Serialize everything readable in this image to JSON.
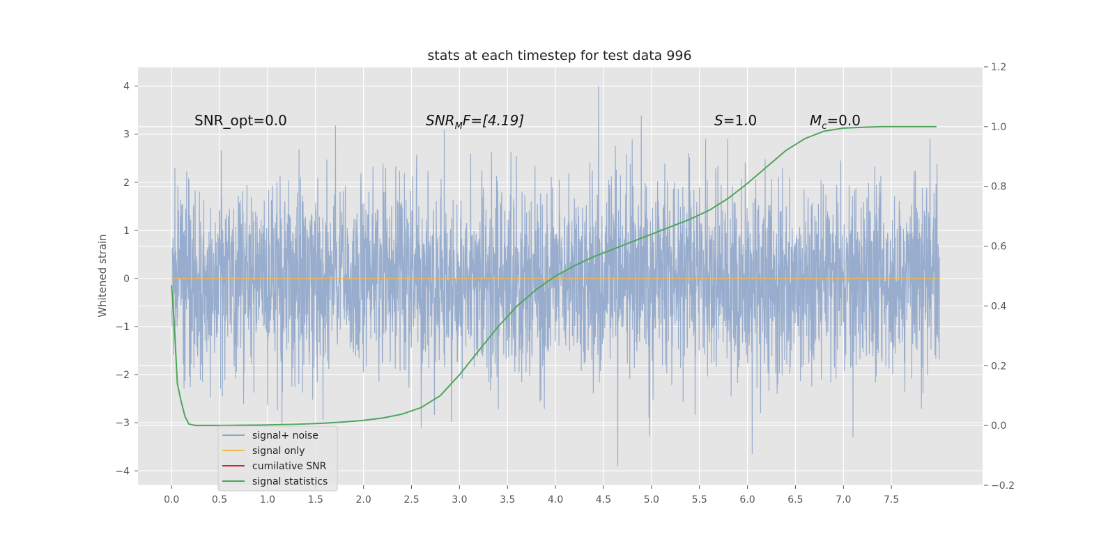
{
  "chart_data": {
    "type": "line",
    "title": "stats at each timestep for test data 996",
    "ylabel": "Whitened strain",
    "xlim": [
      -0.35,
      8.45
    ],
    "ylim": [
      -4.3,
      4.4
    ],
    "y2lim": [
      -0.2,
      1.2
    ],
    "x_ticks": [
      0.0,
      0.5,
      1.0,
      1.5,
      2.0,
      2.5,
      3.0,
      3.5,
      4.0,
      4.5,
      5.0,
      5.5,
      6.0,
      6.5,
      7.0,
      7.5
    ],
    "x_tick_labels": [
      "0.0",
      "0.5",
      "1.0",
      "1.5",
      "2.0",
      "2.5",
      "3.0",
      "3.5",
      "4.0",
      "4.5",
      "5.0",
      "5.5",
      "6.0",
      "6.5",
      "7.0",
      "7.5"
    ],
    "y_ticks": [
      4,
      3,
      2,
      1,
      0,
      -1,
      -2,
      -3,
      -4
    ],
    "y_tick_labels": [
      "4",
      "3",
      "2",
      "1",
      "0",
      "−1",
      "−2",
      "−3",
      "−4"
    ],
    "y2_ticks": [
      1.2,
      1.0,
      0.8,
      0.6,
      0.4,
      0.2,
      0.0,
      -0.2
    ],
    "y2_tick_labels": [
      "1.2",
      "1.0",
      "0.8",
      "0.6",
      "0.4",
      "0.2",
      "0.0",
      "−0.2"
    ],
    "grid": true,
    "legend_position": "lower-left",
    "annotations": {
      "snr_opt": "SNR_opt=0.0",
      "snr_mf_main": "SNR",
      "snr_mf_sub": "M",
      "snr_mf_rest": "F=[4.19]",
      "s_main": "S",
      "s_rest": "=1.0",
      "mc_main": "M",
      "mc_sub": "c",
      "mc_rest": "=0.0"
    },
    "series": [
      {
        "name": "signal+ noise",
        "color": "#8fa6cb",
        "axis": "left",
        "x_range": [
          0.0,
          8.0
        ],
        "approx_std": 1.0,
        "notable_peaks": [
          [
            4.45,
            4.0
          ],
          [
            4.65,
            -3.9
          ],
          [
            6.05,
            -3.65
          ],
          [
            1.15,
            -3.05
          ],
          [
            2.6,
            -3.1
          ],
          [
            7.1,
            -3.3
          ]
        ]
      },
      {
        "name": "signal only",
        "color": "#f0b94d",
        "axis": "left",
        "x": [
          0.0,
          8.0
        ],
        "y": [
          0.0,
          0.0
        ]
      },
      {
        "name": "cumilative SNR",
        "color": "#d62728",
        "axis": "left",
        "x": [],
        "y": []
      },
      {
        "name": "signal statistics",
        "color": "#4da55a",
        "axis": "right",
        "x": [
          0.0,
          0.03,
          0.06,
          0.1,
          0.14,
          0.18,
          0.25,
          0.3,
          0.4,
          0.5,
          0.7,
          1.0,
          1.3,
          1.6,
          1.8,
          2.0,
          2.2,
          2.4,
          2.6,
          2.8,
          3.0,
          3.2,
          3.4,
          3.6,
          3.8,
          4.0,
          4.2,
          4.4,
          4.6,
          4.8,
          5.0,
          5.2,
          5.4,
          5.6,
          5.8,
          6.0,
          6.2,
          6.4,
          6.6,
          6.8,
          7.0,
          7.2,
          7.4,
          7.6,
          7.8,
          7.97
        ],
        "y": [
          0.47,
          0.33,
          0.14,
          0.08,
          0.03,
          0.005,
          0.0,
          0.0,
          0.0,
          0.0,
          0.001,
          0.002,
          0.004,
          0.008,
          0.012,
          0.017,
          0.025,
          0.038,
          0.06,
          0.1,
          0.17,
          0.25,
          0.33,
          0.4,
          0.455,
          0.5,
          0.535,
          0.565,
          0.59,
          0.615,
          0.64,
          0.665,
          0.69,
          0.72,
          0.76,
          0.81,
          0.865,
          0.92,
          0.96,
          0.985,
          0.995,
          0.998,
          1.0,
          1.0,
          1.0,
          1.0
        ]
      }
    ]
  }
}
